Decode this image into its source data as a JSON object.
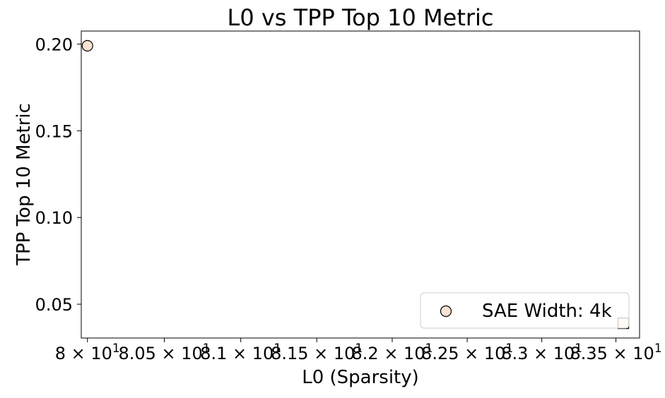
{
  "chart_data": {
    "type": "scatter",
    "title": "L0 vs TPP Top 10 Metric",
    "xlabel": "L0 (Sparsity)",
    "ylabel": "TPP Top 10 Metric",
    "xscale": "log",
    "xlim": [
      79.96,
      83.66
    ],
    "ylim": [
      0.0305,
      0.2075
    ],
    "grid": false,
    "xticks": [
      {
        "value": 80.0,
        "mantissa": "8",
        "label": "8 × 10^1"
      },
      {
        "value": 80.5,
        "mantissa": "8.05",
        "label": "8.05 × 10^1"
      },
      {
        "value": 81.0,
        "mantissa": "8.1",
        "label": "8.1 × 10^1"
      },
      {
        "value": 81.5,
        "mantissa": "8.15",
        "label": "8.15 × 10^1"
      },
      {
        "value": 82.0,
        "mantissa": "8.2",
        "label": "8.2 × 10^1"
      },
      {
        "value": 82.5,
        "mantissa": "8.25",
        "label": "8.25 × 10^1"
      },
      {
        "value": 83.0,
        "mantissa": "8.3",
        "label": "8.3 × 10^1"
      },
      {
        "value": 83.5,
        "mantissa": "8.35",
        "label": "8.35 × 10^1"
      }
    ],
    "yticks": [
      {
        "value": 0.05,
        "label": "0.05"
      },
      {
        "value": 0.1,
        "label": "0.10"
      },
      {
        "value": 0.15,
        "label": "0.15"
      },
      {
        "value": 0.2,
        "label": "0.20"
      }
    ],
    "series": [
      {
        "name": "SAE Width: 4k",
        "marker": "circle",
        "color": "#fbe3d3",
        "edgecolor": "#000000",
        "points": [
          {
            "x": 80.0,
            "y": 0.199
          }
        ]
      },
      {
        "marker": "square",
        "color": "#fbe3d3",
        "edgecolor": "#000000",
        "points": [
          {
            "x": 83.55,
            "y": 0.039
          }
        ]
      }
    ],
    "legend": {
      "position": "lower-right",
      "entries": [
        "SAE Width: 4k"
      ]
    }
  }
}
